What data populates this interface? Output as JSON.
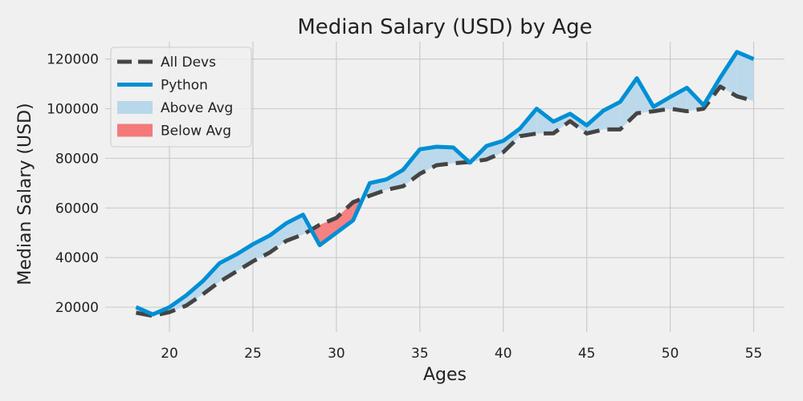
{
  "chart_data": {
    "type": "line",
    "title": "Median Salary (USD) by Age",
    "xlabel": "Ages",
    "ylabel": "Median Salary (USD)",
    "xlim": [
      16.15,
      56.85
    ],
    "ylim": [
      10000,
      127000
    ],
    "xticks": [
      20,
      25,
      30,
      35,
      40,
      45,
      50,
      55
    ],
    "yticks": [
      20000,
      40000,
      60000,
      80000,
      100000,
      120000
    ],
    "grid": true,
    "legend_position": "top-left",
    "x": [
      18,
      19,
      20,
      21,
      22,
      23,
      24,
      25,
      26,
      27,
      28,
      29,
      30,
      31,
      32,
      33,
      34,
      35,
      36,
      37,
      38,
      39,
      40,
      41,
      42,
      43,
      44,
      45,
      46,
      47,
      48,
      49,
      50,
      51,
      52,
      53,
      54,
      55
    ],
    "series": [
      {
        "name": "All Devs",
        "style": "dashed",
        "color": "#444444",
        "values": [
          17784,
          16500,
          18012,
          20628,
          25206,
          30252,
          34368,
          38496,
          42000,
          46752,
          49320,
          53200,
          56000,
          62316,
          64928,
          67317,
          68748,
          73752,
          77232,
          78000,
          78508,
          79536,
          82488,
          88935,
          90000,
          90056,
          95000,
          90000,
          91633,
          91660,
          98150,
          98964,
          100000,
          98988,
          100000,
          108923,
          105000,
          103117
        ]
      },
      {
        "name": "Python",
        "style": "solid",
        "color": "#008fd5",
        "values": [
          20046,
          17100,
          20000,
          24744,
          30500,
          37732,
          41247,
          45372,
          48876,
          53850,
          57287,
          45000,
          50000,
          55000,
          70000,
          71496,
          75370,
          83640,
          84666,
          84392,
          78254,
          85000,
          87038,
          91991,
          100000,
          94796,
          97962,
          93302,
          99240,
          102736,
          112285,
          100771,
          104708,
          108423,
          101407,
          112542,
          122870,
          120000
        ]
      }
    ],
    "fills": [
      {
        "name": "Above Avg",
        "color": "#b8d7ea"
      },
      {
        "name": "Below Avg",
        "color": "#f47a7a"
      }
    ]
  }
}
